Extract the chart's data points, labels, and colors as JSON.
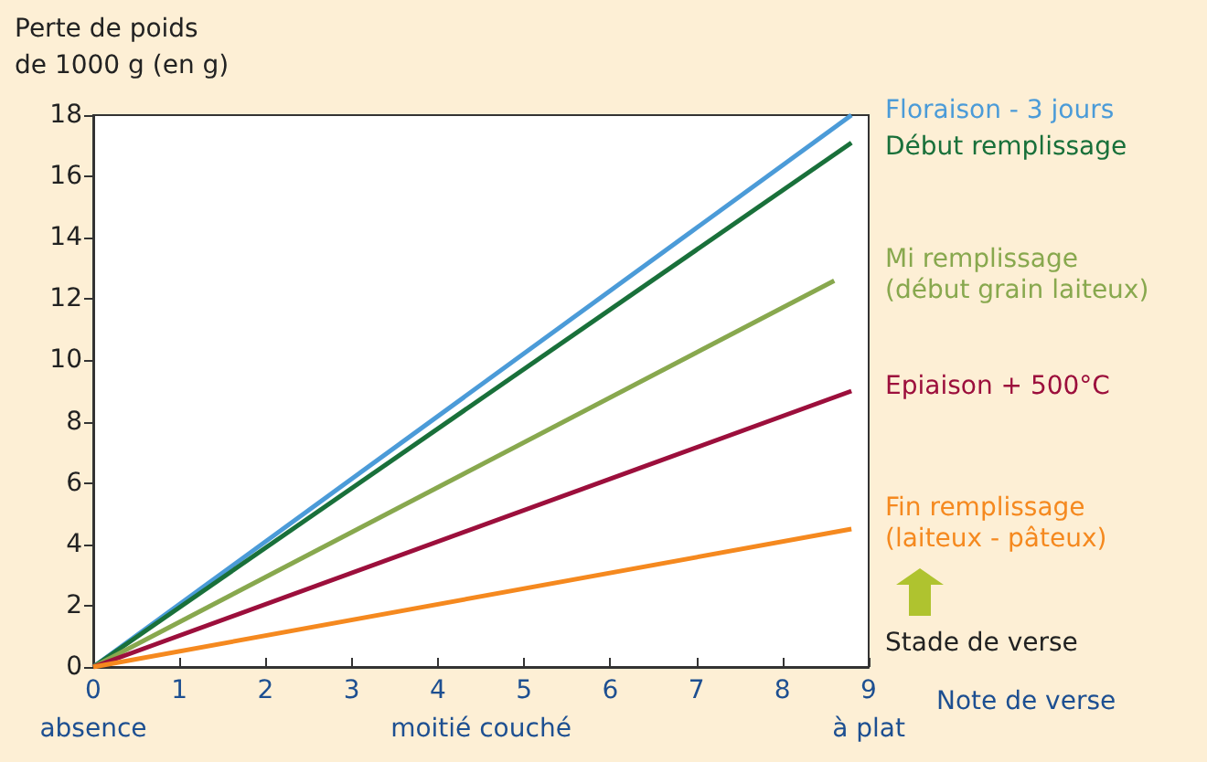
{
  "chart_data": {
    "type": "line",
    "xlabel": "Note de verse",
    "ylabel": "Perte de poids\nde 1000 g (en g)",
    "xlim": [
      0,
      9
    ],
    "xticks": [
      0,
      1,
      2,
      3,
      4,
      5,
      6,
      7,
      8,
      9
    ],
    "ylim": [
      0,
      18
    ],
    "yticks": [
      0,
      2,
      4,
      6,
      8,
      10,
      12,
      14,
      16,
      18
    ],
    "grid": false,
    "legend": false,
    "marker": "none",
    "line_style": "solid",
    "series": [
      {
        "name": "Floraison - 3 jours",
        "color": "#4b9bd8",
        "x": [
          0,
          8.8
        ],
        "values": [
          0,
          18
        ]
      },
      {
        "name": "Début remplissage",
        "color": "#19703a",
        "x": [
          0,
          8.8
        ],
        "values": [
          0,
          17.1
        ]
      },
      {
        "name": "Mi remplissage\n(début grain laiteux)",
        "color": "#88a84e",
        "x": [
          0,
          8.6
        ],
        "values": [
          0,
          12.6
        ]
      },
      {
        "name": "Epiaison + 500°C",
        "color": "#9c0f3c",
        "x": [
          0,
          8.8
        ],
        "values": [
          0,
          9
        ]
      },
      {
        "name": "Fin remplissage\n(laiteux - pâteux)",
        "color": "#f5891f",
        "x": [
          0,
          8.8
        ],
        "values": [
          0,
          4.5
        ]
      }
    ],
    "annotations": [
      "absence",
      "moitié couché",
      "à plat",
      "Stade de verse"
    ]
  }
}
